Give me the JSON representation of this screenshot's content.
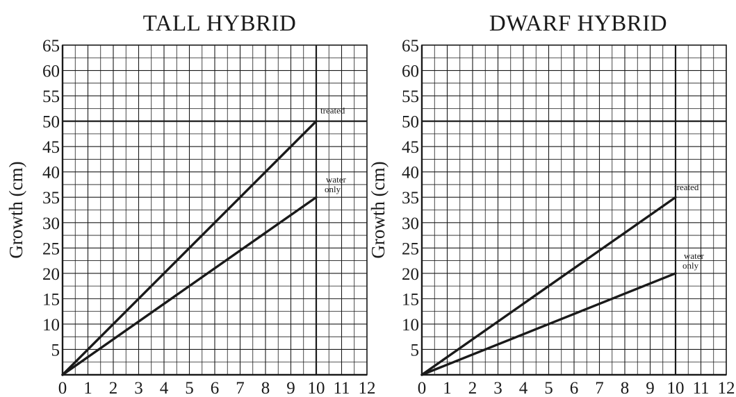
{
  "chart_data": [
    {
      "type": "line",
      "title": "TALL HYBRID",
      "xlabel": "",
      "ylabel": "Growth (cm)",
      "xlim": [
        0,
        12
      ],
      "ylim": [
        0,
        65
      ],
      "x_ticks": [
        0,
        1,
        2,
        3,
        4,
        5,
        6,
        7,
        8,
        9,
        10,
        11,
        12
      ],
      "y_ticks": [
        5,
        10,
        15,
        20,
        25,
        30,
        35,
        40,
        45,
        50,
        55,
        60,
        65
      ],
      "grid": true,
      "series": [
        {
          "name": "treated",
          "x": [
            0,
            10
          ],
          "y": [
            0,
            50
          ]
        },
        {
          "name": "water only",
          "x": [
            0,
            10
          ],
          "y": [
            0,
            35
          ]
        }
      ]
    },
    {
      "type": "line",
      "title": "DWARF HYBRID",
      "xlabel": "",
      "ylabel": "Growth (cm)",
      "xlim": [
        0,
        12
      ],
      "ylim": [
        0,
        65
      ],
      "x_ticks": [
        0,
        1,
        2,
        3,
        4,
        5,
        6,
        7,
        8,
        9,
        10,
        11,
        12
      ],
      "y_ticks": [
        5,
        10,
        15,
        20,
        25,
        30,
        35,
        40,
        45,
        50,
        55,
        60,
        65
      ],
      "grid": true,
      "series": [
        {
          "name": "treated",
          "x": [
            0,
            10
          ],
          "y": [
            0,
            35
          ]
        },
        {
          "name": "water only",
          "x": [
            0,
            10
          ],
          "y": [
            0,
            20
          ]
        }
      ]
    }
  ],
  "colors": {
    "line": "#1a1a1a",
    "grid": "#1a1a1a",
    "background": "#ffffff"
  }
}
